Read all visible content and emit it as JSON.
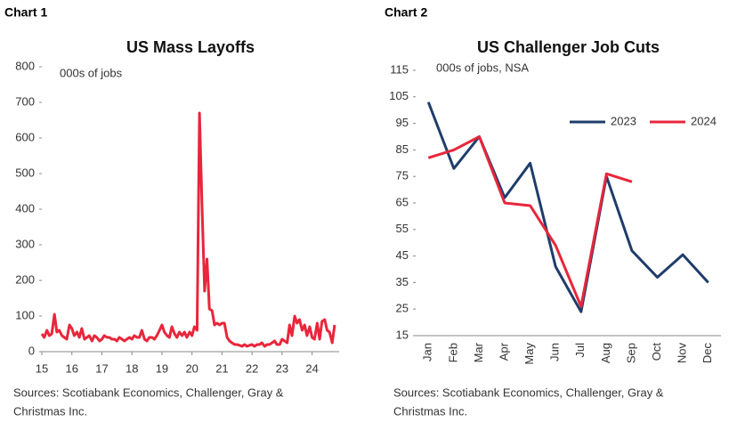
{
  "chart_data": [
    {
      "type": "line",
      "label": "Chart 1",
      "title": "US Mass Layoffs",
      "subtitle": "000s of jobs",
      "source": [
        "Sources: Scotiabank Economics, Challenger, Gray &",
        "Christmas Inc."
      ],
      "x": [
        15,
        15.08,
        15.17,
        15.25,
        15.33,
        15.42,
        15.5,
        15.58,
        15.67,
        15.75,
        15.83,
        15.92,
        16,
        16.08,
        16.17,
        16.25,
        16.33,
        16.42,
        16.5,
        16.58,
        16.67,
        16.75,
        16.83,
        16.92,
        17,
        17.08,
        17.17,
        17.25,
        17.33,
        17.42,
        17.5,
        17.58,
        17.67,
        17.75,
        17.83,
        17.92,
        18,
        18.08,
        18.17,
        18.25,
        18.33,
        18.42,
        18.5,
        18.58,
        18.67,
        18.75,
        18.83,
        18.92,
        19,
        19.08,
        19.17,
        19.25,
        19.33,
        19.42,
        19.5,
        19.58,
        19.67,
        19.75,
        19.83,
        19.92,
        20,
        20.08,
        20.17,
        20.25,
        20.33,
        20.42,
        20.5,
        20.58,
        20.67,
        20.75,
        20.83,
        20.92,
        21,
        21.08,
        21.17,
        21.25,
        21.33,
        21.42,
        21.5,
        21.58,
        21.67,
        21.75,
        21.83,
        21.92,
        22,
        22.08,
        22.17,
        22.25,
        22.33,
        22.42,
        22.5,
        22.58,
        22.67,
        22.75,
        22.83,
        22.92,
        23,
        23.08,
        23.17,
        23.25,
        23.33,
        23.42,
        23.5,
        23.58,
        23.67,
        23.75,
        23.83,
        23.92,
        24,
        24.08,
        24.17,
        24.25,
        24.33,
        24.42,
        24.5,
        24.58,
        24.67,
        24.75
      ],
      "values": [
        50,
        40,
        60,
        45,
        50,
        105,
        55,
        60,
        45,
        40,
        35,
        75,
        65,
        45,
        55,
        40,
        65,
        35,
        40,
        45,
        30,
        45,
        40,
        30,
        35,
        45,
        40,
        40,
        35,
        35,
        30,
        40,
        35,
        30,
        35,
        40,
        35,
        45,
        40,
        40,
        60,
        35,
        30,
        40,
        40,
        35,
        45,
        60,
        75,
        55,
        45,
        40,
        70,
        50,
        40,
        55,
        45,
        55,
        40,
        55,
        45,
        70,
        60,
        670,
        420,
        170,
        260,
        120,
        115,
        75,
        80,
        75,
        80,
        80,
        40,
        30,
        25,
        20,
        20,
        18,
        15,
        20,
        15,
        18,
        20,
        15,
        20,
        20,
        25,
        15,
        20,
        20,
        25,
        30,
        20,
        20,
        35,
        30,
        25,
        75,
        45,
        100,
        80,
        90,
        60,
        75,
        45,
        70,
        40,
        35,
        80,
        35,
        85,
        90,
        60,
        55,
        25,
        75
      ],
      "color": "#e8263b",
      "xlim": [
        15,
        24.9
      ],
      "xticks": [
        15,
        16,
        17,
        18,
        19,
        20,
        21,
        22,
        23,
        24
      ],
      "ylim": [
        0,
        800
      ],
      "yticks": [
        0,
        100,
        200,
        300,
        400,
        500,
        600,
        700,
        800
      ]
    },
    {
      "type": "line",
      "label": "Chart 2",
      "title": "US Challenger Job Cuts",
      "subtitle": "000s of jobs, NSA",
      "source": [
        "Sources: Scotiabank Economics, Challenger, Gray &",
        "Christmas Inc."
      ],
      "categories": [
        "Jan",
        "Feb",
        "Mar",
        "Apr",
        "May",
        "Jun",
        "Jul",
        "Aug",
        "Sep",
        "Oct",
        "Nov",
        "Dec"
      ],
      "series": [
        {
          "name": "2023",
          "color": "#1f3d6b",
          "values": [
            103,
            78,
            90,
            67,
            80,
            41,
            24,
            75,
            47,
            37,
            45.5,
            35
          ]
        },
        {
          "name": "2024",
          "color": "#e8263b",
          "values": [
            82,
            85,
            90,
            65,
            64,
            49,
            26,
            76,
            73,
            null,
            null,
            null
          ]
        }
      ],
      "ylim": [
        15,
        115
      ],
      "yticks": [
        15,
        25,
        35,
        45,
        55,
        65,
        75,
        85,
        95,
        105,
        115
      ],
      "legend": "upper right"
    }
  ]
}
